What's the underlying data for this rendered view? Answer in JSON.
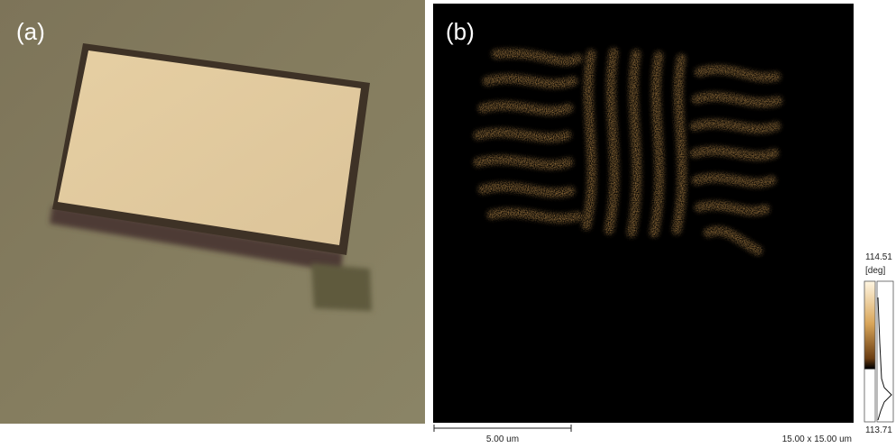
{
  "panels": {
    "a": {
      "label": "(a)"
    },
    "b": {
      "label": "(b)",
      "colorbar": {
        "max": "114.51",
        "unit": "[deg]",
        "min": "113.71"
      },
      "scale_bar": "5.00 um",
      "scan_size": "15.00 x 15.00 um"
    }
  }
}
